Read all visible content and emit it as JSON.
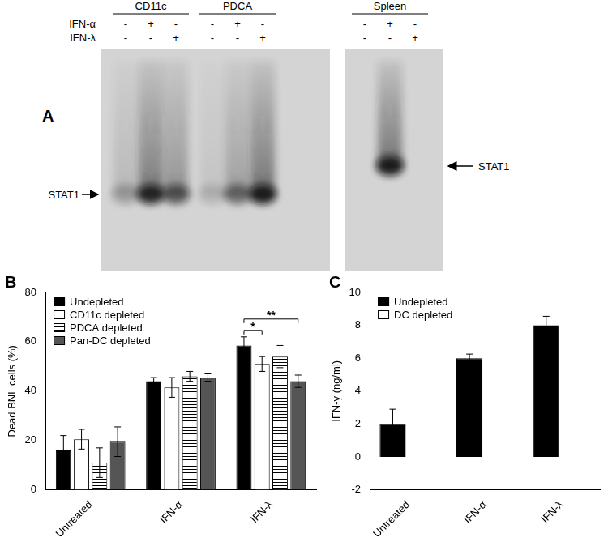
{
  "panel_a": {
    "panel_label": "A",
    "row_labels": [
      "IFN-α",
      "IFN-λ"
    ],
    "groups": [
      {
        "name": "CD11c",
        "signs": [
          [
            "-",
            "+",
            "-"
          ],
          [
            "-",
            "-",
            "+"
          ]
        ],
        "band_intensity": [
          0.25,
          0.85,
          0.6
        ]
      },
      {
        "name": "PDCA",
        "signs": [
          [
            "-",
            "+",
            "-"
          ],
          [
            "-",
            "-",
            "+"
          ]
        ],
        "band_intensity": [
          0.15,
          0.5,
          0.9
        ]
      },
      {
        "name": "Spleen",
        "signs": [
          [
            "-",
            "+",
            "-"
          ],
          [
            "-",
            "-",
            "+"
          ]
        ],
        "band_intensity": [
          0,
          0.9,
          0
        ]
      }
    ],
    "markers": [
      {
        "text": "STAT1",
        "side": "left"
      },
      {
        "text": "STAT1",
        "side": "right"
      }
    ]
  },
  "chart_data": [
    {
      "panel_label": "B",
      "type": "bar",
      "ylabel": "Dead BNL cells (%)",
      "categories": [
        "Untreated",
        "IFN-α",
        "IFN-λ"
      ],
      "series": [
        {
          "name": "Undepleted",
          "color": "#000000",
          "values": [
            16,
            44,
            58.5
          ],
          "errors": [
            6,
            1.5,
            3.5
          ]
        },
        {
          "name": "CD11c depleted",
          "color": "#ffffff",
          "values": [
            20.5,
            41.5,
            51
          ],
          "errors": [
            4,
            4,
            3
          ]
        },
        {
          "name": "PDCA depleted",
          "color": "#000000",
          "marker": "stripes",
          "values": [
            11,
            46,
            54
          ],
          "errors": [
            6,
            2,
            4.5
          ]
        },
        {
          "name": "Pan-DC depleted",
          "color": "#555555",
          "values": [
            19.5,
            45.5,
            44
          ],
          "errors": [
            6,
            1.5,
            2.5
          ]
        }
      ],
      "ylim": [
        0,
        80
      ],
      "yticks": [
        0,
        20,
        40,
        60,
        80
      ],
      "grid": false,
      "legend": "top-left",
      "annotations": [
        {
          "category": "IFN-λ",
          "series": [
            "Undepleted",
            "CD11c depleted"
          ],
          "text": "*"
        },
        {
          "category": "IFN-λ",
          "series": [
            "Undepleted",
            "Pan-DC depleted"
          ],
          "text": "**"
        }
      ]
    },
    {
      "panel_label": "C",
      "type": "bar",
      "ylabel": "IFN-γ (ng/ml)",
      "categories": [
        "Untreated",
        "IFN-α",
        "IFN-λ"
      ],
      "series": [
        {
          "name": "Undepleted",
          "color": "#000000",
          "values": [
            2,
            6,
            8
          ],
          "errors": [
            0.9,
            0.25,
            0.55
          ]
        },
        {
          "name": "DC depleted",
          "color": "#ffffff",
          "values": [
            0,
            0,
            0
          ]
        }
      ],
      "ylim": [
        -2,
        10
      ],
      "yticks": [
        -2,
        0,
        2,
        4,
        6,
        8,
        10
      ],
      "grid": false,
      "legend": "top-left"
    }
  ]
}
